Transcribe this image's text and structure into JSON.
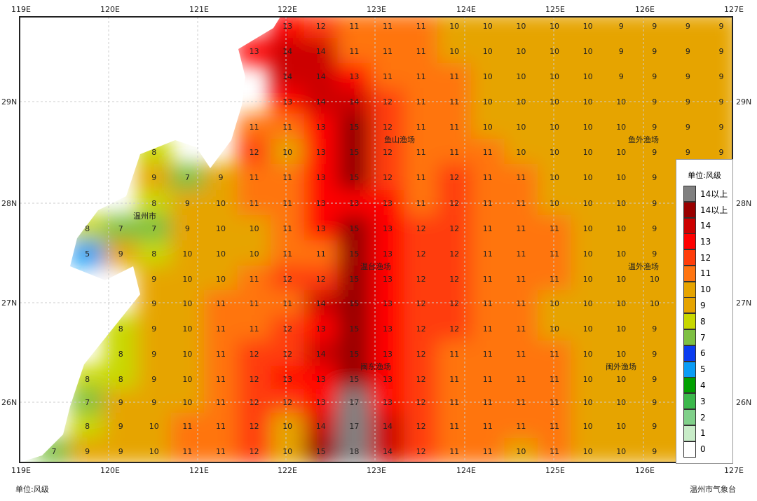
{
  "axes": {
    "lon": [
      "119E",
      "120E",
      "121E",
      "122E",
      "123E",
      "124E",
      "125E",
      "126E",
      "127E"
    ],
    "lat": [
      "29N",
      "28N",
      "27N",
      "26N"
    ]
  },
  "legend": {
    "title": "单位:风级",
    "items": [
      {
        "label": "14以上",
        "color": "#808080"
      },
      {
        "label": "14以上",
        "color": "#990000"
      },
      {
        "label": "14",
        "color": "#cc0000"
      },
      {
        "label": "13",
        "color": "#ff0000"
      },
      {
        "label": "12",
        "color": "#ff3d0a"
      },
      {
        "label": "11",
        "color": "#ff7410"
      },
      {
        "label": "10",
        "color": "#e6a400"
      },
      {
        "label": "9",
        "color": "#e6a400"
      },
      {
        "label": "8",
        "color": "#c8d800"
      },
      {
        "label": "7",
        "color": "#7ec043"
      },
      {
        "label": "6",
        "color": "#0a3cf0"
      },
      {
        "label": "5",
        "color": "#0a9cf5"
      },
      {
        "label": "4",
        "color": "#00a000"
      },
      {
        "label": "3",
        "color": "#3cb84c"
      },
      {
        "label": "2",
        "color": "#80d08a"
      },
      {
        "label": "1",
        "color": "#c8ecc8"
      },
      {
        "label": "0",
        "color": "#ffffff"
      }
    ]
  },
  "areas": [
    {
      "name": "鱼山渔场"
    },
    {
      "name": "鱼外渔场"
    },
    {
      "name": "温外渔场"
    },
    {
      "name": "温台渔场"
    },
    {
      "name": "闽东渔场"
    },
    {
      "name": "闽外渔场"
    },
    {
      "name": "温州市"
    }
  ],
  "grid": [
    [
      null,
      null,
      null,
      null,
      null,
      null,
      null,
      13,
      12,
      11,
      11,
      11,
      10,
      10,
      10,
      10,
      10,
      9,
      9,
      9,
      9
    ],
    [
      null,
      null,
      null,
      null,
      null,
      null,
      13,
      14,
      14,
      11,
      11,
      11,
      10,
      10,
      10,
      10,
      10,
      9,
      9,
      9,
      9
    ],
    [
      null,
      null,
      null,
      null,
      null,
      null,
      null,
      14,
      14,
      13,
      11,
      11,
      11,
      10,
      10,
      10,
      10,
      9,
      9,
      9,
      9
    ],
    [
      null,
      null,
      null,
      null,
      null,
      null,
      null,
      13,
      14,
      14,
      12,
      11,
      11,
      10,
      10,
      10,
      10,
      10,
      9,
      9,
      9
    ],
    [
      null,
      null,
      null,
      null,
      null,
      null,
      11,
      11,
      13,
      15,
      12,
      11,
      11,
      10,
      10,
      10,
      10,
      10,
      9,
      9,
      9
    ],
    [
      null,
      null,
      null,
      8,
      null,
      null,
      12,
      10,
      13,
      15,
      12,
      11,
      11,
      11,
      10,
      10,
      10,
      10,
      9,
      9,
      9
    ],
    [
      null,
      null,
      null,
      9,
      7,
      9,
      11,
      11,
      13,
      15,
      12,
      11,
      12,
      11,
      11,
      10,
      10,
      10,
      9,
      null,
      null
    ],
    [
      null,
      null,
      null,
      8,
      9,
      10,
      11,
      11,
      13,
      13,
      13,
      11,
      12,
      11,
      11,
      10,
      10,
      10,
      9,
      null,
      null
    ],
    [
      null,
      8,
      7,
      7,
      9,
      10,
      10,
      11,
      13,
      15,
      13,
      12,
      12,
      11,
      11,
      11,
      10,
      10,
      9,
      null,
      null
    ],
    [
      null,
      5,
      9,
      8,
      10,
      10,
      10,
      11,
      11,
      15,
      13,
      12,
      12,
      11,
      11,
      11,
      10,
      10,
      9,
      null,
      null
    ],
    [
      null,
      null,
      null,
      9,
      10,
      10,
      11,
      12,
      12,
      15,
      13,
      12,
      12,
      11,
      11,
      11,
      10,
      10,
      10,
      null,
      null
    ],
    [
      null,
      null,
      null,
      9,
      10,
      11,
      11,
      11,
      14,
      15,
      13,
      12,
      12,
      11,
      11,
      10,
      10,
      10,
      10,
      null,
      null
    ],
    [
      null,
      null,
      8,
      9,
      10,
      11,
      11,
      12,
      13,
      15,
      13,
      12,
      12,
      11,
      11,
      10,
      10,
      10,
      9,
      null,
      null
    ],
    [
      null,
      null,
      8,
      9,
      10,
      11,
      12,
      12,
      14,
      15,
      13,
      12,
      11,
      11,
      11,
      11,
      10,
      10,
      9,
      null,
      null
    ],
    [
      null,
      8,
      8,
      9,
      10,
      11,
      12,
      13,
      13,
      15,
      13,
      12,
      11,
      11,
      11,
      11,
      10,
      10,
      9,
      null,
      null
    ],
    [
      null,
      7,
      9,
      9,
      10,
      11,
      12,
      12,
      13,
      17,
      13,
      12,
      11,
      11,
      11,
      11,
      10,
      10,
      9,
      null,
      null
    ],
    [
      null,
      8,
      9,
      10,
      11,
      11,
      12,
      10,
      14,
      17,
      14,
      12,
      11,
      11,
      11,
      11,
      10,
      10,
      9,
      null,
      null
    ],
    [
      7,
      9,
      9,
      10,
      11,
      11,
      12,
      10,
      15,
      18,
      14,
      12,
      11,
      11,
      10,
      11,
      10,
      10,
      9,
      null,
      null
    ]
  ],
  "footer": {
    "left": "单位:风级",
    "right": "温州市气象台"
  }
}
